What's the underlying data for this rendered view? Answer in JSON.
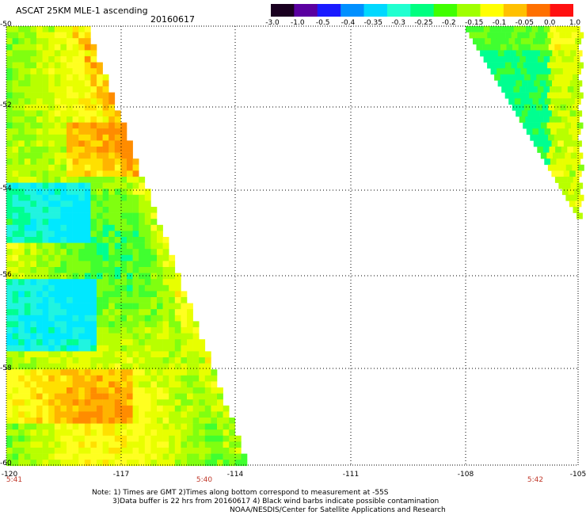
{
  "title": "ASCAT 25KM MLE-1 ascending",
  "date": "20160617",
  "colorbar": {
    "labels": [
      "-3.0",
      "-1.0",
      "-0.5",
      "-0.4",
      "-0.35",
      "-0.3",
      "-0.25",
      "-0.2",
      "-0.15",
      "-0.1",
      "-0.05",
      "0.0",
      "1.0"
    ],
    "colors": [
      "#1a0020",
      "#5a00a0",
      "#1a1aff",
      "#0090ff",
      "#00d8ff",
      "#20ffd0",
      "#00ff80",
      "#40ff00",
      "#a0ff00",
      "#ffff00",
      "#ffc000",
      "#ff7000",
      "#ff1010"
    ]
  },
  "map": {
    "lat_labels": [
      "-50",
      "-52",
      "-54",
      "-56",
      "-58",
      "-60"
    ],
    "lon_labels": [
      "-120",
      "-117",
      "-114",
      "-111",
      "-108",
      "-105"
    ],
    "time_labels": [
      "5:41",
      "5:40",
      "5:42"
    ],
    "gridline_color": "#000000"
  },
  "notes": {
    "line1": "Note: 1) Times are GMT 2)Times along bottom correspond to measurement at -55S",
    "line2": "3)Data buffer is 22 hrs from 20160617 4) Black wind barbs indicate possible contamination",
    "line3": "NOAA/NESDIS/Center for Satellite Applications and Research"
  }
}
